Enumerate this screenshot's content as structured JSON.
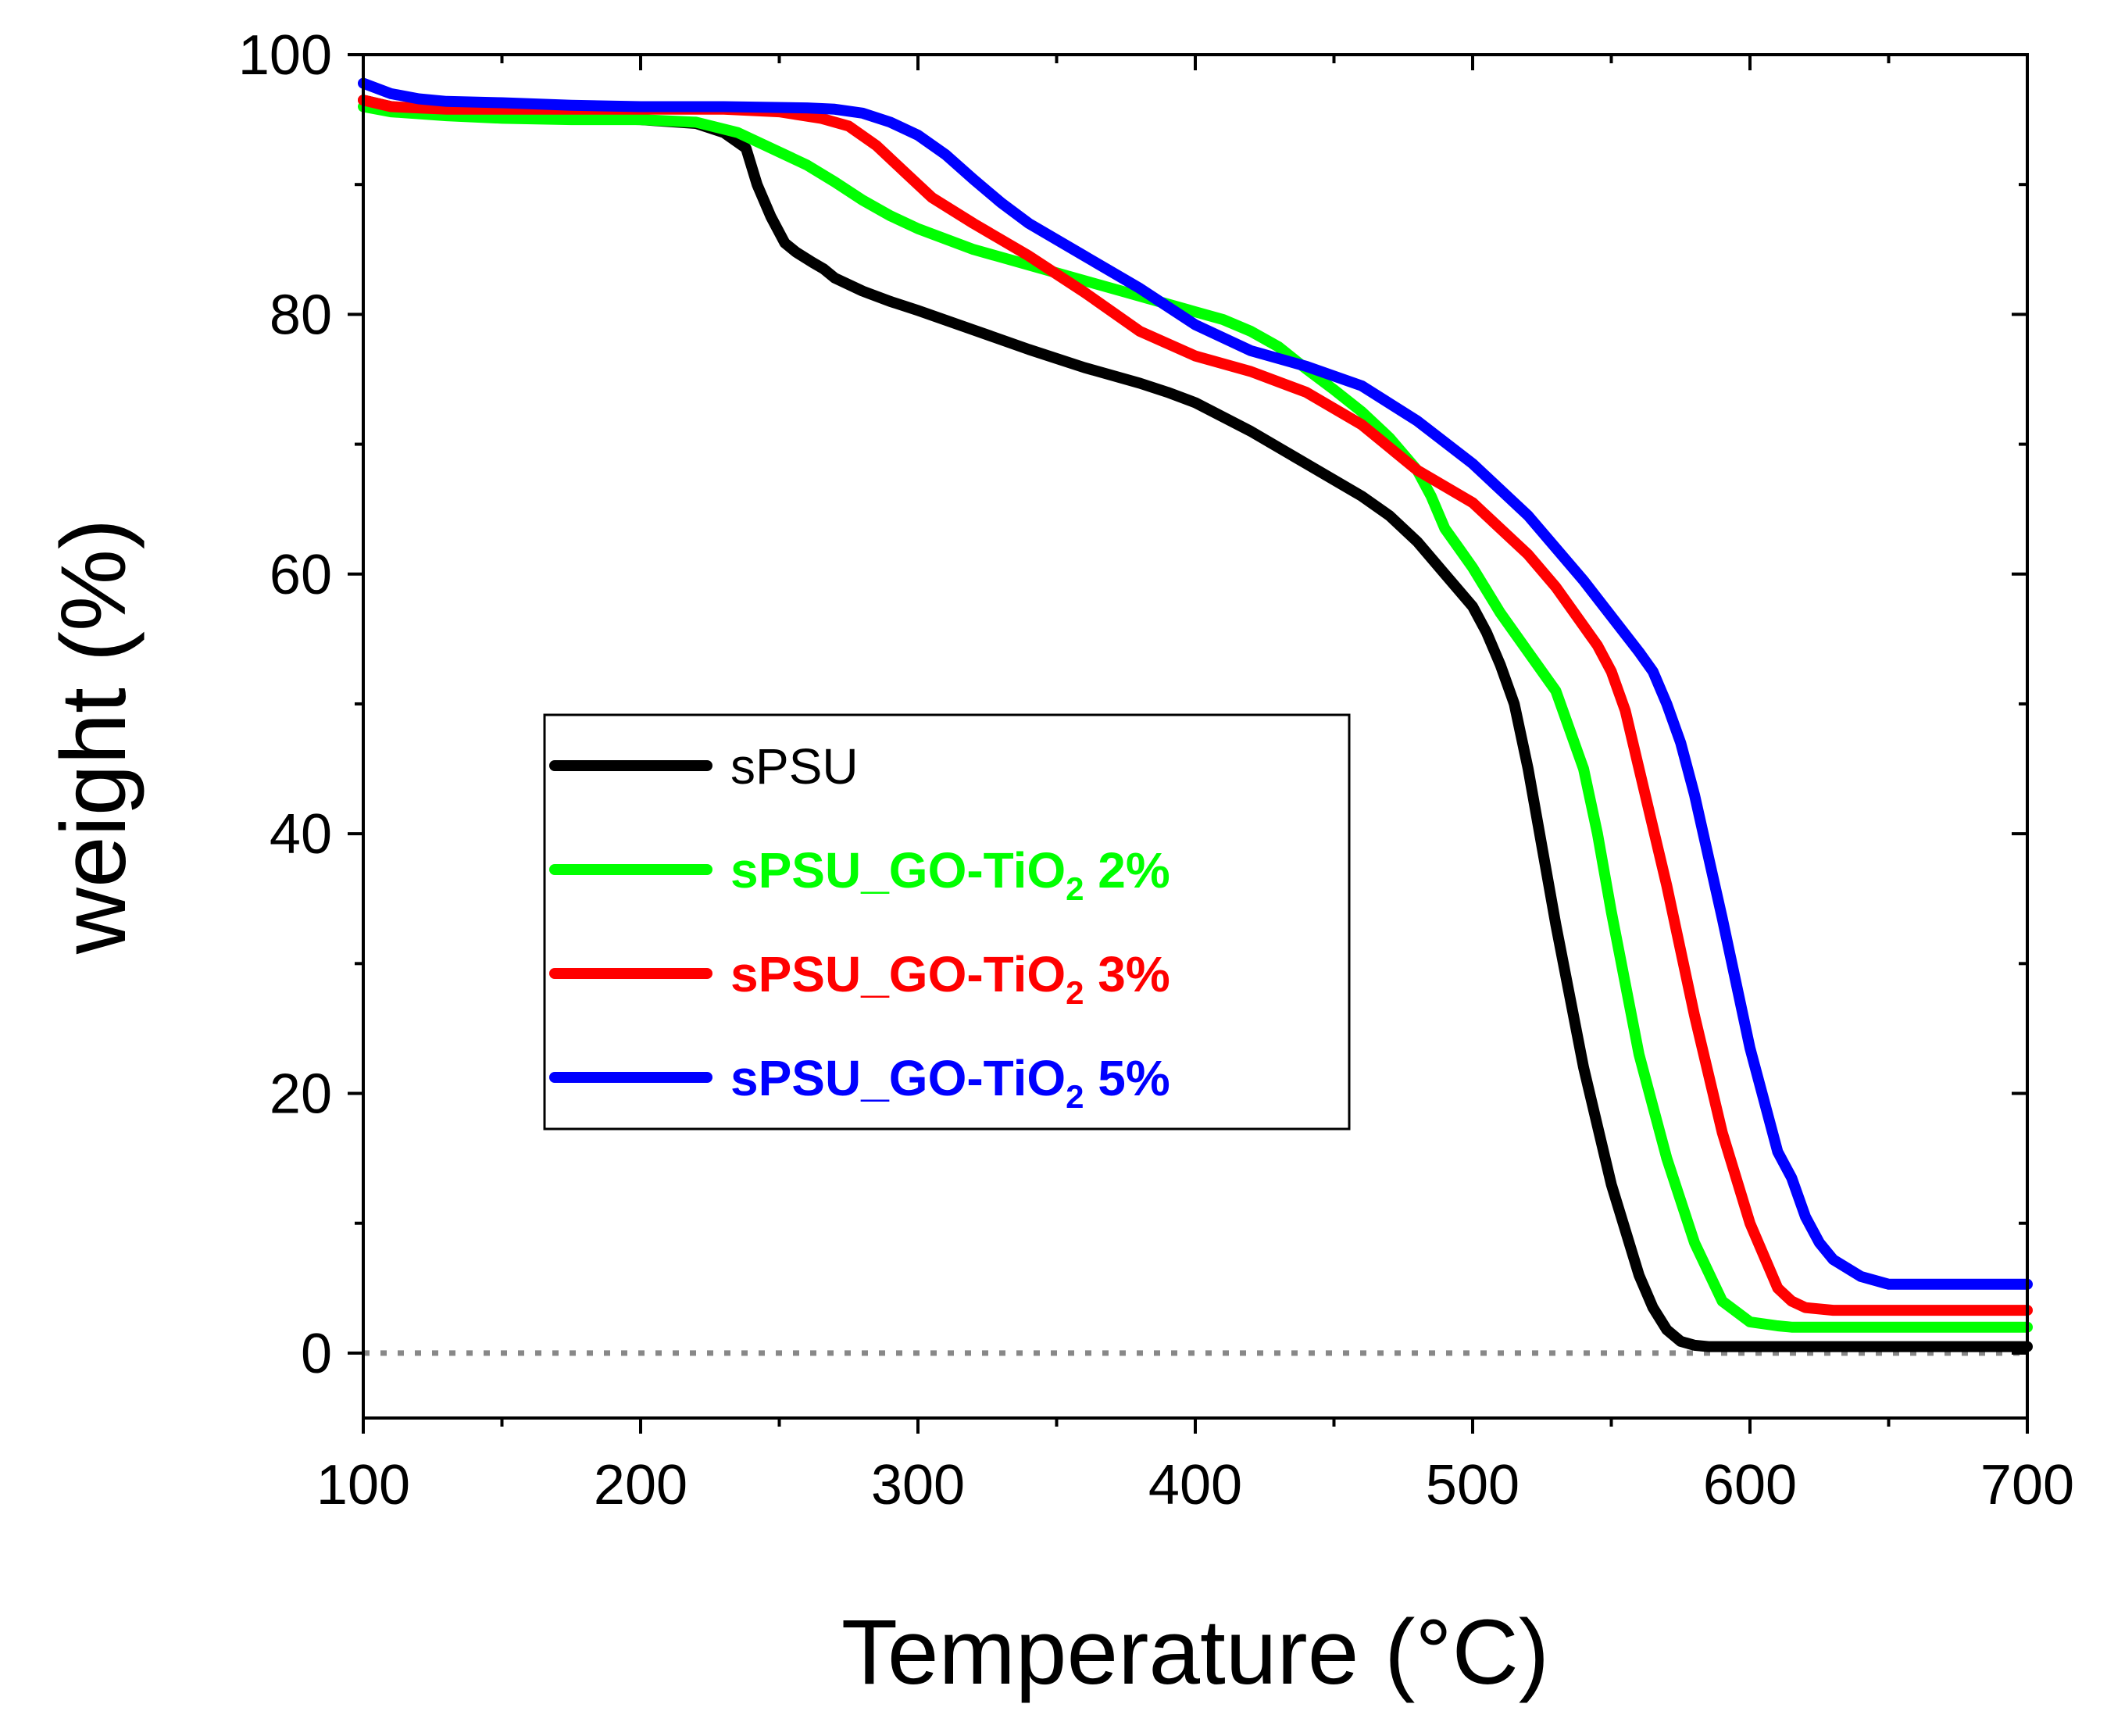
{
  "chart_data": {
    "type": "line",
    "xlabel": "Temperature (°C)",
    "ylabel": "weight (%)",
    "xlim": [
      100,
      700
    ],
    "ylim": [
      -5,
      100
    ],
    "xticks": [
      100,
      200,
      300,
      400,
      500,
      600,
      700
    ],
    "xtick_labels": [
      "100",
      "200",
      "300",
      "400",
      "500",
      "600",
      "700"
    ],
    "yticks": [
      0,
      20,
      40,
      60,
      80,
      100
    ],
    "ytick_labels": [
      "0",
      "20",
      "40",
      "60",
      "80",
      "100"
    ],
    "x_minor_ticks": [
      150,
      250,
      350,
      450,
      550,
      650
    ],
    "y_minor_ticks": [
      10,
      30,
      50,
      70,
      90
    ],
    "reference_line": {
      "y": 0,
      "style": "dotted",
      "color": "#888888"
    },
    "legend_position": "center-left",
    "series": [
      {
        "name": "sPSU",
        "label_parts": [
          "sPSU"
        ],
        "color": "#000000",
        "x": [
          100,
          110,
          130,
          150,
          175,
          200,
          220,
          230,
          238,
          242,
          247,
          252,
          256,
          262,
          266,
          270,
          280,
          290,
          300,
          320,
          340,
          360,
          380,
          390,
          400,
          420,
          440,
          460,
          470,
          480,
          490,
          500,
          505,
          510,
          515,
          520,
          530,
          540,
          550,
          560,
          565,
          570,
          575,
          580,
          585,
          590,
          600,
          620,
          650,
          680,
          700
        ],
        "y": [
          96.5,
          96,
          95.6,
          95.3,
          95.1,
          95,
          94.7,
          94,
          92.8,
          90,
          87.5,
          85.5,
          84.8,
          84,
          83.5,
          82.8,
          81.8,
          81,
          80.3,
          78.8,
          77.3,
          75.9,
          74.7,
          74,
          73.2,
          71,
          68.5,
          66,
          64.5,
          62.5,
          60,
          57.5,
          55.5,
          53,
          50,
          45,
          33,
          22,
          13,
          6,
          3.5,
          1.8,
          0.9,
          0.6,
          0.5,
          0.5,
          0.5,
          0.5,
          0.5,
          0.5,
          0.5
        ]
      },
      {
        "name": "sPSU_GO-TiO2 2%",
        "label_parts": [
          "sPSU_GO-TiO",
          "2",
          " 2%"
        ],
        "color": "#00ff00",
        "x": [
          100,
          110,
          130,
          150,
          175,
          200,
          220,
          235,
          245,
          260,
          270,
          280,
          290,
          300,
          320,
          340,
          360,
          380,
          400,
          410,
          420,
          430,
          440,
          450,
          460,
          470,
          480,
          485,
          490,
          495,
          500,
          510,
          520,
          530,
          540,
          545,
          550,
          560,
          570,
          580,
          590,
          600,
          610,
          615,
          620,
          630,
          650,
          680,
          700
        ],
        "y": [
          96,
          95.6,
          95.3,
          95.1,
          95,
          95,
          94.8,
          94,
          93,
          91.5,
          90.2,
          88.8,
          87.6,
          86.6,
          85,
          83.8,
          82.6,
          81.4,
          80.2,
          79.6,
          78.7,
          77.5,
          75.8,
          74.2,
          72.5,
          70.5,
          68,
          66,
          63.5,
          62,
          60.5,
          57,
          54,
          51,
          45,
          40,
          34,
          23,
          15,
          8.5,
          4,
          2.4,
          2.1,
          2,
          2,
          2,
          2,
          2,
          2
        ]
      },
      {
        "name": "sPSU_GO-TiO2 3%",
        "label_parts": [
          "sPSU_GO-TiO",
          "2",
          " 3%"
        ],
        "color": "#ff0000",
        "x": [
          100,
          110,
          130,
          150,
          175,
          200,
          230,
          250,
          265,
          275,
          285,
          295,
          305,
          320,
          340,
          360,
          380,
          400,
          420,
          440,
          460,
          480,
          500,
          520,
          530,
          540,
          545,
          550,
          555,
          560,
          570,
          580,
          590,
          600,
          610,
          615,
          620,
          630,
          650,
          680,
          700
        ],
        "y": [
          96.5,
          96,
          95.8,
          95.8,
          95.8,
          95.8,
          95.8,
          95.6,
          95.1,
          94.5,
          93,
          91,
          89,
          87,
          84.5,
          81.7,
          78.7,
          76.8,
          75.6,
          74,
          71.5,
          68,
          65.5,
          61.5,
          59,
          56,
          54.5,
          52.5,
          49.5,
          45,
          36,
          26,
          17,
          10,
          5,
          4,
          3.5,
          3.3,
          3.3,
          3.3,
          3.3
        ]
      },
      {
        "name": "sPSU_GO-TiO2 5%",
        "label_parts": [
          "sPSU_GO-TiO",
          "2",
          " 5%"
        ],
        "color": "#0000ff",
        "x": [
          100,
          110,
          120,
          130,
          150,
          175,
          200,
          230,
          260,
          270,
          280,
          290,
          300,
          310,
          320,
          330,
          340,
          360,
          380,
          400,
          420,
          440,
          460,
          480,
          500,
          520,
          540,
          560,
          565,
          570,
          575,
          580,
          590,
          600,
          610,
          615,
          620,
          625,
          630,
          640,
          650,
          680,
          700
        ],
        "y": [
          97.8,
          97,
          96.6,
          96.4,
          96.3,
          96.1,
          96,
          96,
          95.9,
          95.8,
          95.5,
          94.8,
          93.8,
          92.3,
          90.4,
          88.6,
          87,
          84.5,
          82,
          79.2,
          77.2,
          76,
          74.5,
          71.8,
          68.5,
          64.5,
          59.5,
          54,
          52.5,
          50,
          47,
          43,
          33.5,
          23.5,
          15.5,
          13.5,
          10.5,
          8.5,
          7.2,
          5.9,
          5.3,
          5.3,
          5.3
        ]
      }
    ]
  }
}
